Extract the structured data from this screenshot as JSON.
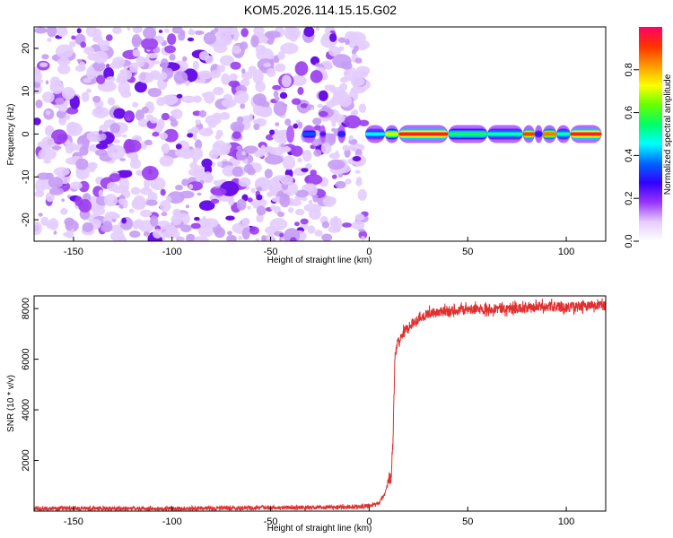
{
  "title": "KOM5.2026.114.15.15.G02",
  "chart_data": [
    {
      "type": "heatmap",
      "xlabel": "Height of straight line (km)",
      "ylabel": "Frequency (Hz)",
      "xlim": [
        -170,
        120
      ],
      "ylim": [
        -25,
        25
      ],
      "x_ticks": [
        -150,
        -100,
        -50,
        0,
        50,
        100
      ],
      "y_ticks": [
        -20,
        -10,
        0,
        10,
        20
      ],
      "colorbar": {
        "label": "Normalized spectral amplitude",
        "range": [
          0,
          1
        ],
        "ticks": [
          "0.0",
          "0.2",
          "0.4",
          "0.6",
          "0.8"
        ],
        "colors": [
          "#ffffff",
          "#e6ccff",
          "#9933ff",
          "#3300ff",
          "#0066ff",
          "#00ffff",
          "#00ff66",
          "#66ff00",
          "#ffff00",
          "#ff9900",
          "#ff3300",
          "#ff0066"
        ]
      },
      "noise_region_x": [
        -170,
        -2
      ],
      "band": {
        "frequency": 0,
        "segments": [
          {
            "x": [
              -42,
              -38
            ],
            "amplitude": 0.15
          },
          {
            "x": [
              -34,
              -27
            ],
            "amplitude": 0.35
          },
          {
            "x": [
              -25,
              -22
            ],
            "amplitude": 0.25
          },
          {
            "x": [
              -16,
              -12
            ],
            "amplitude": 0.3
          },
          {
            "x": [
              -2,
              8
            ],
            "amplitude": 0.45
          },
          {
            "x": [
              8,
              15
            ],
            "amplitude": 0.7
          },
          {
            "x": [
              15,
              40
            ],
            "amplitude": 0.95
          },
          {
            "x": [
              40,
              60
            ],
            "amplitude": 0.55
          },
          {
            "x": [
              60,
              78
            ],
            "amplitude": 0.5
          },
          {
            "x": [
              78,
              84
            ],
            "amplitude": 0.9
          },
          {
            "x": [
              84,
              88
            ],
            "amplitude": 0.3
          },
          {
            "x": [
              88,
              95
            ],
            "amplitude": 0.85
          },
          {
            "x": [
              95,
              102
            ],
            "amplitude": 0.5
          },
          {
            "x": [
              102,
              118
            ],
            "amplitude": 0.95
          }
        ]
      }
    },
    {
      "type": "line",
      "xlabel": "Height of straight line (km)",
      "ylabel": "SNR (10 * v/v)",
      "xlim": [
        -170,
        120
      ],
      "ylim": [
        0,
        8500
      ],
      "x_ticks": [
        -150,
        -100,
        -50,
        0,
        50,
        100
      ],
      "y_ticks": [
        2000,
        4000,
        6000,
        8000
      ],
      "series": [
        {
          "color": "#e03030",
          "x": [
            -170,
            -100,
            -50,
            -10,
            0,
            5,
            8,
            10,
            11,
            12,
            13,
            14,
            15,
            17,
            20,
            25,
            30,
            40,
            60,
            80,
            90,
            100,
            110,
            120
          ],
          "values": [
            100,
            100,
            130,
            160,
            200,
            300,
            700,
            1200,
            1300,
            2500,
            6000,
            6500,
            6700,
            7000,
            7300,
            7600,
            7800,
            7900,
            8000,
            8000,
            8100,
            8050,
            8100,
            8100
          ]
        }
      ]
    }
  ]
}
